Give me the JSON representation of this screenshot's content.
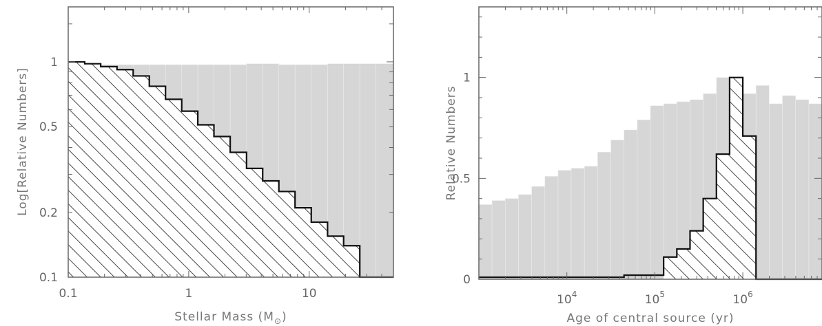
{
  "chart_data": [
    {
      "type": "bar",
      "xlabel": "Stellar Mass (M",
      "xlabel_sub": "⊙",
      "xlabel_close": ")",
      "ylabel": "Log[Relative Numbers]",
      "xscale": "log",
      "yscale": "log",
      "xlim": [
        0.1,
        50
      ],
      "ylim": [
        0.1,
        1.8
      ],
      "xtick_labels": [
        {
          "value": 0.1,
          "label": "0.1"
        },
        {
          "value": 1,
          "label": "1"
        },
        {
          "value": 10,
          "label": "10"
        }
      ],
      "ytick_labels": [
        {
          "value": 0.1,
          "label": "0.1"
        },
        {
          "value": 0.2,
          "label": "0.2"
        },
        {
          "value": 0.5,
          "label": "0.5"
        },
        {
          "value": 1,
          "label": "1"
        }
      ],
      "bin_edges": [
        0.1,
        0.137,
        0.186,
        0.254,
        0.346,
        0.471,
        0.642,
        0.875,
        1.19,
        1.62,
        2.21,
        3.02,
        4.11,
        5.6,
        7.63,
        10.4,
        14.2,
        19.3,
        26.3,
        35.8,
        50
      ],
      "series": [
        {
          "style": "filled-gray",
          "values": [
            0.98,
            0.98,
            0.97,
            0.97,
            0.97,
            0.97,
            0.97,
            0.97,
            0.97,
            0.97,
            0.97,
            0.98,
            0.98,
            0.97,
            0.97,
            0.97,
            0.98,
            0.98,
            0.98,
            0.98
          ]
        },
        {
          "style": "hatched",
          "values": [
            1.0,
            0.98,
            0.95,
            0.92,
            0.86,
            0.77,
            0.67,
            0.59,
            0.51,
            0.45,
            0.38,
            0.32,
            0.28,
            0.25,
            0.21,
            0.18,
            0.155,
            0.14,
            0.1,
            0.1
          ]
        }
      ],
      "grid": false
    },
    {
      "type": "bar",
      "xlabel": "Age of central source (yr)",
      "ylabel": "Relative Numbers",
      "xscale": "log",
      "yscale": "linear",
      "xlim_log10": [
        3.0,
        6.9
      ],
      "ylim": [
        0,
        1.35
      ],
      "xtick_labels": [
        {
          "log10": 4,
          "base": "10",
          "exp": "4"
        },
        {
          "log10": 5,
          "base": "10",
          "exp": "5"
        },
        {
          "log10": 6,
          "base": "10",
          "exp": "6"
        }
      ],
      "ytick_labels": [
        {
          "value": 0,
          "label": "0"
        },
        {
          "value": 0.5,
          "label": "0.5"
        },
        {
          "value": 1,
          "label": "1"
        }
      ],
      "bin_edges_log10": [
        3.0,
        3.15,
        3.3,
        3.45,
        3.6,
        3.75,
        3.9,
        4.05,
        4.2,
        4.35,
        4.5,
        4.65,
        4.8,
        4.95,
        5.1,
        5.25,
        5.4,
        5.55,
        5.7,
        5.85,
        6.0,
        6.15,
        6.3,
        6.45,
        6.6,
        6.75,
        6.9
      ],
      "series": [
        {
          "style": "filled-gray",
          "values": [
            0.37,
            0.39,
            0.4,
            0.42,
            0.46,
            0.51,
            0.54,
            0.55,
            0.56,
            0.63,
            0.69,
            0.74,
            0.79,
            0.86,
            0.87,
            0.88,
            0.89,
            0.92,
            1.0,
            0.98,
            0.92,
            0.96,
            0.87,
            0.91,
            0.89,
            0.87
          ]
        },
        {
          "style": "hatched",
          "values": [
            0.01,
            0.01,
            0.01,
            0.01,
            0.01,
            0.01,
            0.01,
            0.01,
            0.01,
            0.01,
            0.01,
            0.02,
            0.02,
            0.02,
            0.11,
            0.15,
            0.24,
            0.4,
            0.62,
            1.0,
            0.71,
            0.0,
            0.0,
            0.0,
            0.0,
            0.0
          ]
        }
      ],
      "grid": false
    }
  ]
}
